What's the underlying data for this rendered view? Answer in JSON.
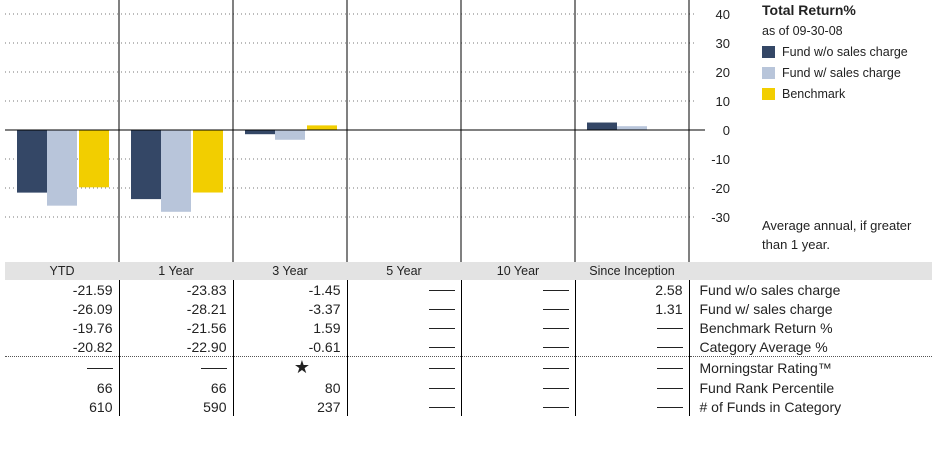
{
  "chart_data": {
    "type": "bar",
    "title": "Total Return%",
    "subtitle": "as of 09-30-08",
    "categories": [
      "YTD",
      "1 Year",
      "3 Year",
      "5 Year",
      "10 Year",
      "Since Inception"
    ],
    "series": [
      {
        "name": "Fund w/o sales charge",
        "color": "#344766",
        "values": [
          -21.59,
          -23.83,
          -1.45,
          null,
          null,
          2.58
        ]
      },
      {
        "name": "Fund w/ sales charge",
        "color": "#b8c5da",
        "values": [
          -26.09,
          -28.21,
          -3.37,
          null,
          null,
          1.31
        ]
      },
      {
        "name": "Benchmark",
        "color": "#f2ce00",
        "values": [
          -19.76,
          -21.56,
          1.59,
          null,
          null,
          null
        ]
      }
    ],
    "ylim": [
      -30,
      40
    ],
    "yticks": [
      40,
      30,
      20,
      10,
      0,
      -10,
      -20,
      -30
    ],
    "grid": true,
    "legend_position": "right",
    "note": "Average annual, if greater than 1 year."
  },
  "table": {
    "headers": [
      "YTD",
      "1 Year",
      "3 Year",
      "5 Year",
      "10 Year",
      "Since Inception"
    ],
    "rows": [
      {
        "label": "Fund w/o sales charge",
        "cells": [
          "-21.59",
          "-23.83",
          "-1.45",
          "—",
          "—",
          "2.58"
        ]
      },
      {
        "label": "Fund w/ sales charge",
        "cells": [
          "-26.09",
          "-28.21",
          "-3.37",
          "—",
          "—",
          "1.31"
        ]
      },
      {
        "label": "Benchmark Return %",
        "cells": [
          "-19.76",
          "-21.56",
          "1.59",
          "—",
          "—",
          "—"
        ]
      },
      {
        "label": "Category Average %",
        "cells": [
          "-20.82",
          "-22.90",
          "-0.61",
          "—",
          "—",
          "—"
        ]
      },
      {
        "label": "Morningstar Rating™",
        "cells": [
          "—",
          "—",
          "★",
          "—",
          "—",
          "—"
        ]
      },
      {
        "label": "Fund Rank Percentile",
        "cells": [
          "66",
          "66",
          "80",
          "—",
          "—",
          "—"
        ]
      },
      {
        "label": "# of Funds in Category",
        "cells": [
          "610",
          "590",
          "237",
          "—",
          "—",
          "—"
        ]
      }
    ]
  }
}
